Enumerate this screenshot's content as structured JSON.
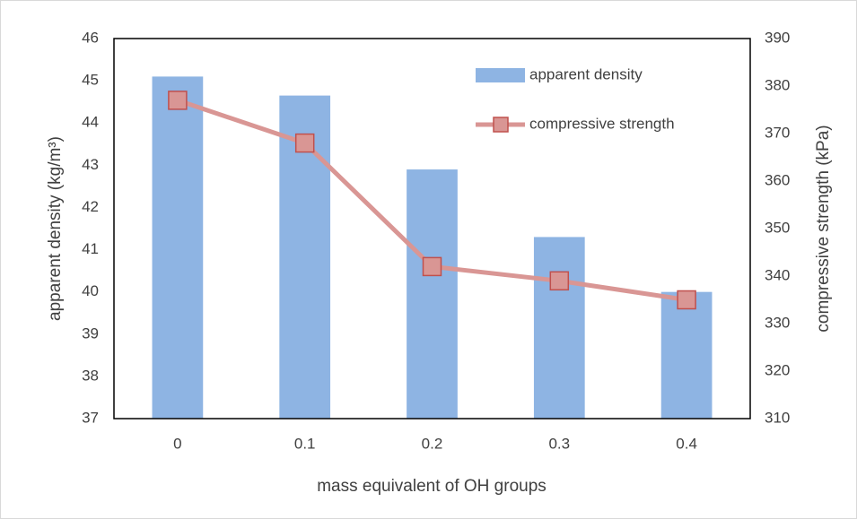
{
  "chart_data": {
    "type": "bar",
    "x_label": "mass equivalent of OH groups",
    "y_label": "apparent density (kg/m³)",
    "y2_label": "compressive strength (kPa)",
    "categories": [
      "0",
      "0.1",
      "0.2",
      "0.3",
      "0.4"
    ],
    "series": [
      {
        "name": "apparent density",
        "type": "bar",
        "color": "#8eb4e3",
        "values": [
          45.1,
          44.65,
          42.9,
          41.3,
          40.0
        ]
      },
      {
        "name": "compressive strength",
        "type": "line",
        "axis": "y2",
        "color": "#d99694",
        "marker_color": "#c0504d",
        "values": [
          377,
          368,
          342,
          339,
          335
        ]
      }
    ],
    "ylim": [
      37,
      46
    ],
    "yticks": [
      37,
      38,
      39,
      40,
      41,
      42,
      43,
      44,
      45,
      46
    ],
    "y2lim": [
      310,
      390
    ],
    "y2ticks": [
      310,
      320,
      330,
      340,
      350,
      360,
      370,
      380,
      390
    ],
    "legend": "upper right",
    "grid": false
  }
}
